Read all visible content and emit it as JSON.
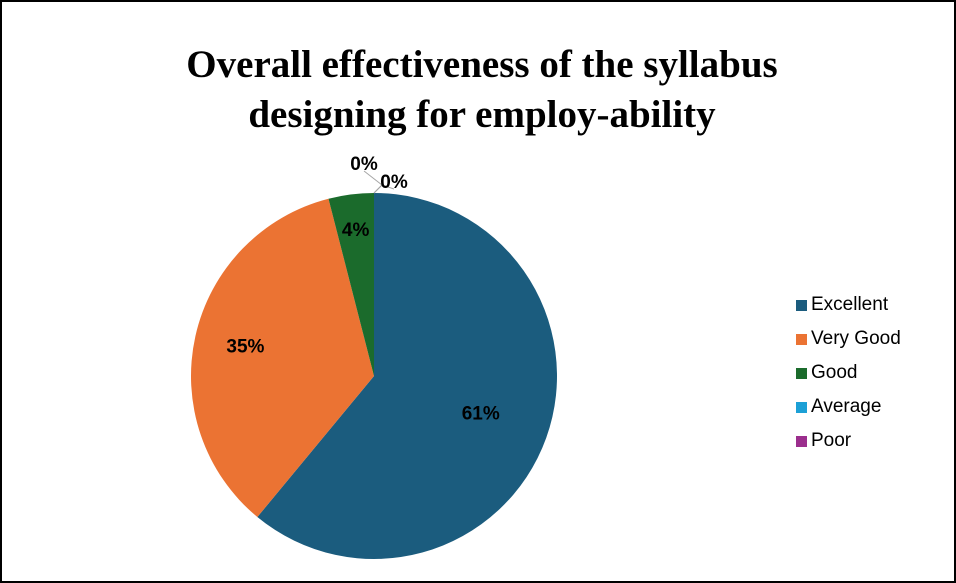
{
  "chart_data": {
    "type": "pie",
    "title": [
      "Overall effectiveness of the syllabus",
      "designing for employ-ability"
    ],
    "categories": [
      "Excellent",
      "Very Good",
      "Good",
      "Average",
      "Poor"
    ],
    "values": [
      61,
      35,
      4,
      0,
      0
    ],
    "labels": [
      "61%",
      "35%",
      "4%",
      "0%",
      "0%"
    ],
    "colors": [
      "#1b5c7e",
      "#eb7333",
      "#1b6b2c",
      "#1ca0d6",
      "#9b2e8d"
    ],
    "legend_position": "right"
  }
}
